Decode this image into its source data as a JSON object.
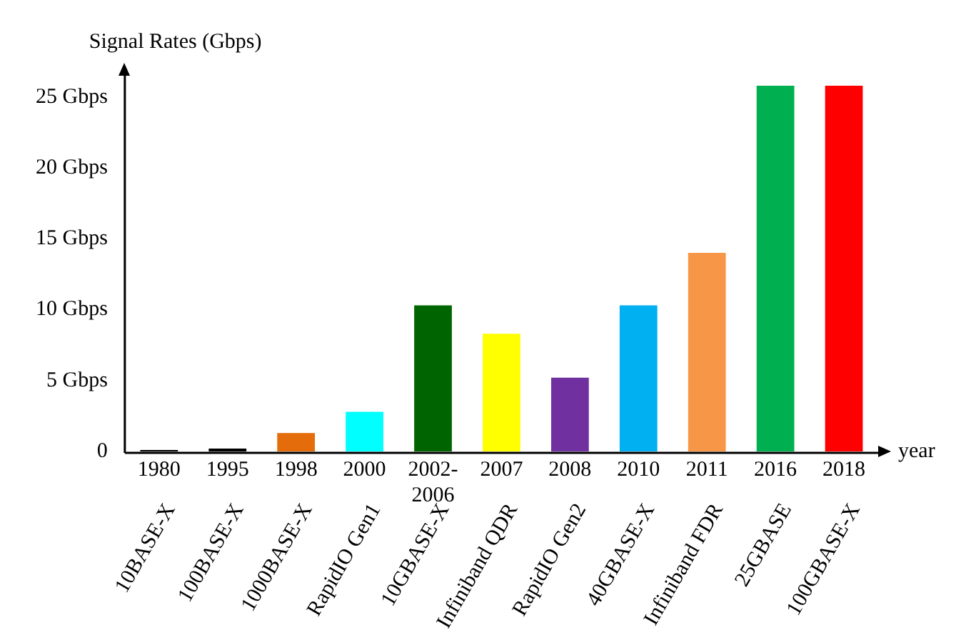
{
  "chart_data": {
    "type": "bar",
    "ylabel": "Signal Rates (Gbps)",
    "xlabel": "year",
    "categories": [
      "1980",
      "1995",
      "1998",
      "2000",
      "2002-2006",
      "2007",
      "2008",
      "2010",
      "2011",
      "2016",
      "2018"
    ],
    "values": [
      0.1,
      0.2,
      1.3,
      2.8,
      10.3,
      8.3,
      5.2,
      10.3,
      14.0,
      25.8,
      25.8
    ],
    "colors": [
      "#000000",
      "#000000",
      "#e46c0a",
      "#00ffff",
      "#006400",
      "#ffff00",
      "#7030a0",
      "#00b0f0",
      "#f79646",
      "#00b050",
      "#ff0000"
    ],
    "ylim": [
      0,
      26.5
    ],
    "yticks": [
      0,
      {
        "value": 5,
        "label": "5 Gbps"
      },
      {
        "value": 10,
        "label": "10 Gbps"
      },
      {
        "value": 15,
        "label": "15 Gbps"
      },
      {
        "value": 20,
        "label": "20 Gbps"
      },
      {
        "value": 25,
        "label": "25 Gbps"
      }
    ],
    "grid": false,
    "legend": false,
    "annotations": [
      "10BASE-X",
      "100BASE-X",
      "1000BASE-X",
      "RapidIO Gen1",
      "10GBASE-X",
      "Infiniband QDR",
      "RapidIO Gen2",
      "40GBASE-X",
      "Infiniband FDR",
      "25GBASE",
      "100GBASE-X"
    ]
  }
}
